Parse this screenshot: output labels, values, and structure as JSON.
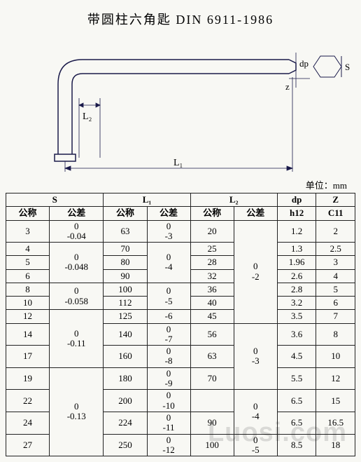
{
  "title": "带圆柱六角匙 DIN 6911-1986",
  "unit_label": "单位：mm",
  "diagram": {
    "labels": {
      "L1": "L₁",
      "L2": "L₂",
      "dp": "dp",
      "z": "z",
      "S": "S"
    }
  },
  "headers": {
    "S": "S",
    "L1": "L₁",
    "L2": "L₂",
    "dp": "dp",
    "Z": "Z",
    "nominal": "公称",
    "tolerance": "公差",
    "h12": "h12",
    "C11": "C11"
  },
  "rows": [
    {
      "S_nom": "3",
      "S_tol": "0\n-0.04",
      "L1_nom": "63",
      "L1_tol": "0\n-3",
      "L2_nom": "20",
      "L2_tol": "",
      "dp": "1.2",
      "Z": "2"
    },
    {
      "S_nom": "4",
      "S_tol": "",
      "L1_nom": "70",
      "L1_tol": "",
      "L2_nom": "25",
      "L2_tol": "",
      "dp": "1.3",
      "Z": "2.5"
    },
    {
      "S_nom": "5",
      "S_tol": "",
      "L1_nom": "80",
      "L1_tol": "",
      "L2_nom": "28",
      "L2_tol": "",
      "dp": "1.96",
      "Z": "3"
    },
    {
      "S_nom": "6",
      "S_tol": "",
      "L1_nom": "90",
      "L1_tol": "",
      "L2_nom": "32",
      "L2_tol": "",
      "dp": "2.6",
      "Z": "4"
    },
    {
      "S_nom": "8",
      "S_tol": "",
      "L1_nom": "100",
      "L1_tol": "",
      "L2_nom": "36",
      "L2_tol": "",
      "dp": "2.8",
      "Z": "5"
    },
    {
      "S_nom": "10",
      "S_tol": "",
      "L1_nom": "112",
      "L1_tol": "",
      "L2_nom": "40",
      "L2_tol": "",
      "dp": "3.2",
      "Z": "6"
    },
    {
      "S_nom": "12",
      "S_tol": "",
      "L1_nom": "125",
      "L1_tol": "",
      "L2_nom": "45",
      "L2_tol": "",
      "dp": "3.5",
      "Z": "7"
    },
    {
      "S_nom": "14",
      "S_tol": "",
      "L1_nom": "140",
      "L1_tol": "",
      "L2_nom": "56",
      "L2_tol": "",
      "dp": "3.6",
      "Z": "8"
    },
    {
      "S_nom": "17",
      "S_tol": "",
      "L1_nom": "160",
      "L1_tol": "",
      "L2_nom": "63",
      "L2_tol": "",
      "dp": "4.5",
      "Z": "10"
    },
    {
      "S_nom": "19",
      "S_tol": "",
      "L1_nom": "180",
      "L1_tol": "",
      "L2_nom": "70",
      "L2_tol": "",
      "dp": "5.5",
      "Z": "12"
    },
    {
      "S_nom": "22",
      "S_tol": "",
      "L1_nom": "200",
      "L1_tol": "",
      "L2_nom": "",
      "L2_tol": "",
      "dp": "6.5",
      "Z": "15"
    },
    {
      "S_nom": "24",
      "S_tol": "",
      "L1_nom": "224",
      "L1_tol": "",
      "L2_nom": "90",
      "L2_tol": "",
      "dp": "6.5",
      "Z": "16.5"
    },
    {
      "S_nom": "27",
      "S_tol": "",
      "L1_nom": "250",
      "L1_tol": "",
      "L2_nom": "100",
      "L2_tol": "",
      "dp": "8.5",
      "Z": "18"
    }
  ],
  "tol_blocks": {
    "S": [
      {
        "start": 1,
        "span": 3,
        "text": "0\n-0.048"
      },
      {
        "start": 4,
        "span": 2,
        "text": "0\n-0.058"
      },
      {
        "start": 6,
        "span": 3,
        "text": "0\n-0.11"
      },
      {
        "start": 9,
        "span": 4,
        "text": "0\n-0.13"
      }
    ],
    "L1": [
      {
        "start": 1,
        "span": 3,
        "text": "0\n-4"
      },
      {
        "start": 4,
        "span": 2,
        "text": "0\n-5"
      },
      {
        "start": 6,
        "span": 1,
        "text": "-6"
      },
      {
        "start": 7,
        "span": 1,
        "text": "0\n-7"
      },
      {
        "start": 8,
        "span": 1,
        "text": "0\n-8"
      },
      {
        "start": 9,
        "span": 1,
        "text": "0\n-9"
      },
      {
        "start": 10,
        "span": 1,
        "text": "0\n-10"
      },
      {
        "start": 11,
        "span": 1,
        "text": "0\n-11"
      },
      {
        "start": 12,
        "span": 1,
        "text": "0\n-12"
      }
    ],
    "L2": [
      {
        "start": 0,
        "span": 7,
        "text": "0\n-2"
      },
      {
        "start": 7,
        "span": 3,
        "text": "0\n-3"
      },
      {
        "start": 10,
        "span": 2,
        "text": "0\n-4"
      },
      {
        "start": 12,
        "span": 1,
        "text": "0\n-5"
      }
    ]
  },
  "watermark": "Luosi.com"
}
